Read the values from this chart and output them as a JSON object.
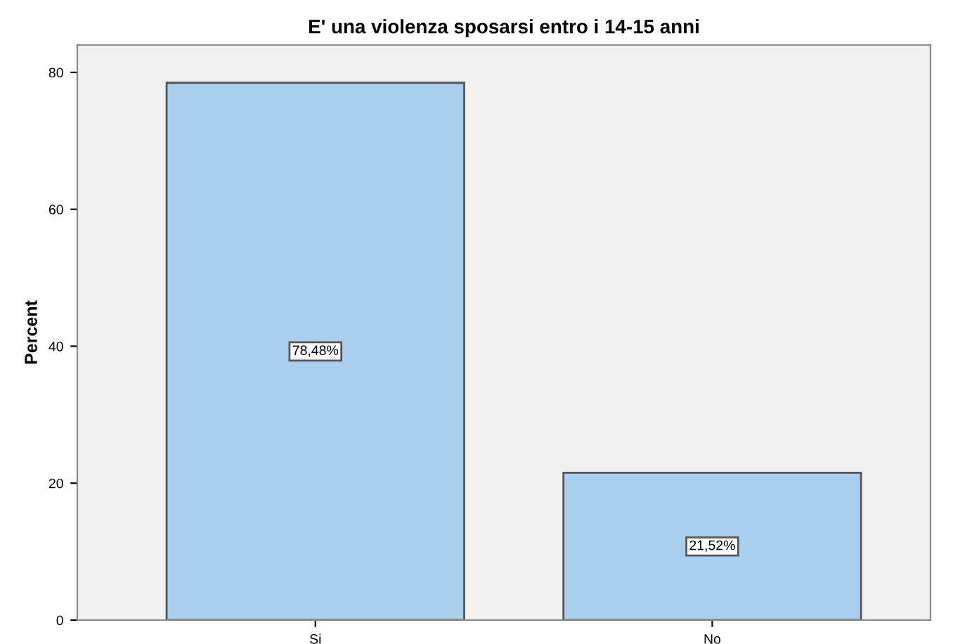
{
  "chart_data": {
    "type": "bar",
    "title": "E' una violenza sposarsi entro i 14-15 anni",
    "ylabel": "Percent",
    "categories": [
      "Si",
      "No"
    ],
    "values": [
      78.48,
      21.52
    ],
    "color": "#abcdee",
    "value_labels": [
      "78,48%",
      "21,52%"
    ],
    "ylim": [
      0,
      84
    ],
    "yticks": [
      0,
      20,
      40,
      60,
      80
    ],
    "grid": false
  }
}
